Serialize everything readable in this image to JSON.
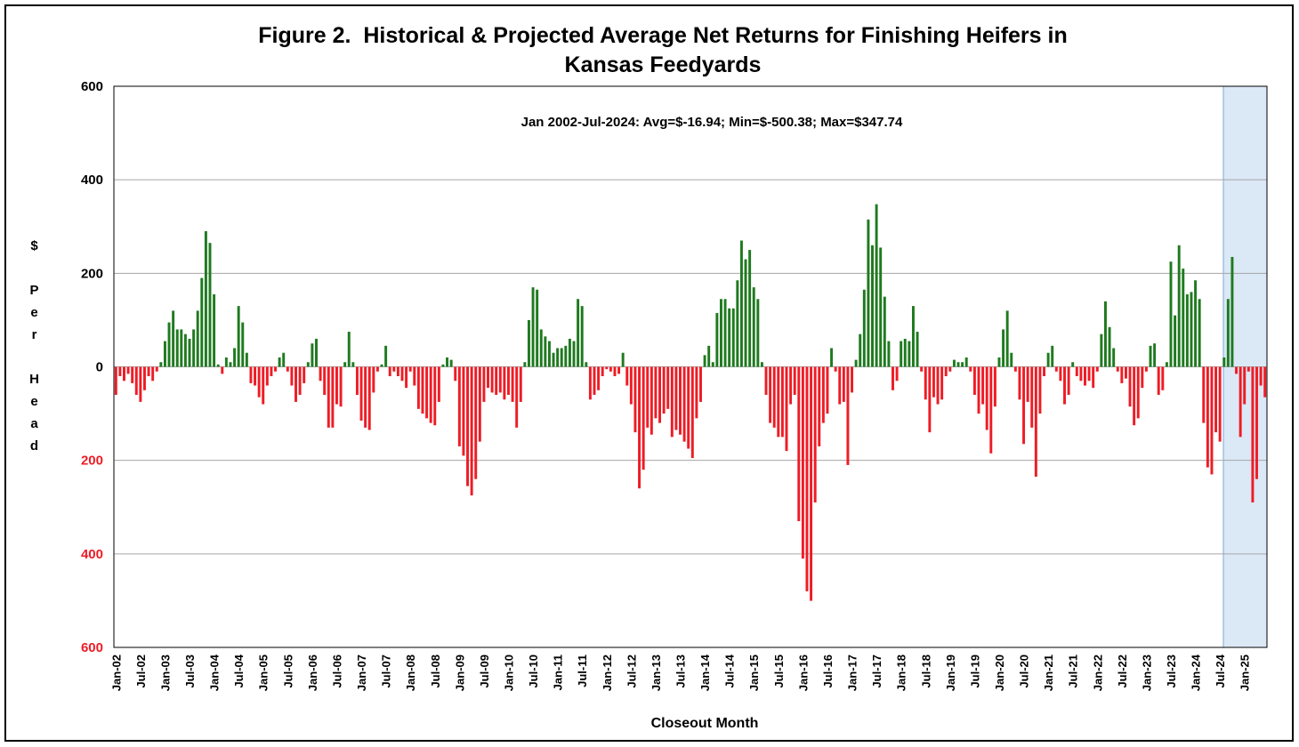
{
  "chart_data": {
    "type": "bar",
    "title": "Figure 2.  Historical & Projected Average Net Returns for Finishing Heifers in Kansas Feedyards",
    "annotation": "Jan 2002-Jul-2024:  Avg=$-16.94; Min=$-500.38; Max=$347.74",
    "y_label": "$ Per Head",
    "x_label": "Closeout Month",
    "ylim": [
      -600,
      600
    ],
    "yticks": [
      {
        "value": 600,
        "label": "600"
      },
      400,
      200,
      0,
      {
        "value": -200,
        "label": "200"
      },
      {
        "value": -400,
        "label": "400"
      },
      {
        "value": -600,
        "label": "600"
      }
    ],
    "grid": true,
    "positive_color": "#1f7a1f",
    "negative_color": "#ee1c25",
    "categories": [
      "Jan-02",
      null,
      null,
      null,
      null,
      null,
      "Jul-02",
      null,
      null,
      null,
      null,
      null,
      "Jan-03",
      null,
      null,
      null,
      null,
      null,
      "Jul-03",
      null,
      null,
      null,
      null,
      null,
      "Jan-04",
      null,
      null,
      null,
      null,
      null,
      "Jul-04",
      null,
      null,
      null,
      null,
      null,
      "Jan-05",
      null,
      null,
      null,
      null,
      null,
      "Jul-05",
      null,
      null,
      null,
      null,
      null,
      "Jan-06",
      null,
      null,
      null,
      null,
      null,
      "Jul-06",
      null,
      null,
      null,
      null,
      null,
      "Jan-07",
      null,
      null,
      null,
      null,
      null,
      "Jul-07",
      null,
      null,
      null,
      null,
      null,
      "Jan-08",
      null,
      null,
      null,
      null,
      null,
      "Jul-08",
      null,
      null,
      null,
      null,
      null,
      "Jan-09",
      null,
      null,
      null,
      null,
      null,
      "Jul-09",
      null,
      null,
      null,
      null,
      null,
      "Jan-10",
      null,
      null,
      null,
      null,
      null,
      "Jul-10",
      null,
      null,
      null,
      null,
      null,
      "Jan-11",
      null,
      null,
      null,
      null,
      null,
      "Jul-11",
      null,
      null,
      null,
      null,
      null,
      "Jan-12",
      null,
      null,
      null,
      null,
      null,
      "Jul-12",
      null,
      null,
      null,
      null,
      null,
      "Jan-13",
      null,
      null,
      null,
      null,
      null,
      "Jul-13",
      null,
      null,
      null,
      null,
      null,
      "Jan-14",
      null,
      null,
      null,
      null,
      null,
      "Jul-14",
      null,
      null,
      null,
      null,
      null,
      "Jan-15",
      null,
      null,
      null,
      null,
      null,
      "Jul-15",
      null,
      null,
      null,
      null,
      null,
      "Jan-16",
      null,
      null,
      null,
      null,
      null,
      "Jul-16",
      null,
      null,
      null,
      null,
      null,
      "Jan-17",
      null,
      null,
      null,
      null,
      null,
      "Jul-17",
      null,
      null,
      null,
      null,
      null,
      "Jan-18",
      null,
      null,
      null,
      null,
      null,
      "Jul-18",
      null,
      null,
      null,
      null,
      null,
      "Jan-19",
      null,
      null,
      null,
      null,
      null,
      "Jul-19",
      null,
      null,
      null,
      null,
      null,
      "Jan-20",
      null,
      null,
      null,
      null,
      null,
      "Jul-20",
      null,
      null,
      null,
      null,
      null,
      "Jan-21",
      null,
      null,
      null,
      null,
      null,
      "Jul-21",
      null,
      null,
      null,
      null,
      null,
      "Jan-22",
      null,
      null,
      null,
      null,
      null,
      "Jul-22",
      null,
      null,
      null,
      null,
      null,
      "Jan-23",
      null,
      null,
      null,
      null,
      null,
      "Jul-23",
      null,
      null,
      null,
      null,
      null,
      "Jan-24",
      null,
      null,
      null,
      null,
      null,
      "Jul-24",
      null,
      null,
      null,
      null,
      null,
      "Jan-25",
      null,
      null,
      null,
      null,
      null
    ],
    "values": [
      -60,
      -20,
      -30,
      -15,
      -35,
      -60,
      -75,
      -50,
      -20,
      -30,
      -10,
      10,
      55,
      95,
      120,
      80,
      80,
      70,
      60,
      80,
      120,
      190,
      290,
      265,
      155,
      5,
      -15,
      20,
      10,
      40,
      130,
      95,
      30,
      -35,
      -40,
      -65,
      -80,
      -40,
      -20,
      -10,
      20,
      30,
      -10,
      -40,
      -75,
      -60,
      -35,
      10,
      50,
      60,
      -30,
      -60,
      -130,
      -130,
      -80,
      -85,
      10,
      75,
      10,
      -60,
      -115,
      -130,
      -135,
      -55,
      -10,
      5,
      45,
      -20,
      -10,
      -20,
      -30,
      -45,
      -10,
      -40,
      -90,
      -100,
      -110,
      -120,
      -125,
      -75,
      5,
      20,
      15,
      -30,
      -170,
      -190,
      -255,
      -275,
      -240,
      -160,
      -75,
      -45,
      -55,
      -60,
      -55,
      -70,
      -60,
      -75,
      -130,
      -75,
      10,
      100,
      170,
      165,
      80,
      65,
      55,
      30,
      40,
      40,
      45,
      60,
      55,
      145,
      130,
      10,
      -70,
      -60,
      -50,
      -20,
      -5,
      -10,
      -20,
      -15,
      30,
      -40,
      -80,
      -140,
      -260,
      -220,
      -130,
      -145,
      -110,
      -120,
      -100,
      -90,
      -150,
      -135,
      -145,
      -160,
      -175,
      -195,
      -110,
      -75,
      25,
      45,
      10,
      115,
      145,
      145,
      125,
      125,
      185,
      270,
      230,
      250,
      170,
      145,
      10,
      -60,
      -120,
      -130,
      -150,
      -150,
      -180,
      -80,
      -60,
      -330,
      -410,
      -480,
      -500.38,
      -290,
      -170,
      -120,
      -100,
      40,
      -10,
      -80,
      -75,
      -210,
      -55,
      15,
      70,
      165,
      315,
      260,
      347.74,
      255,
      150,
      55,
      -50,
      -30,
      55,
      60,
      55,
      130,
      75,
      -10,
      -70,
      -140,
      -65,
      -80,
      -70,
      -20,
      -10,
      15,
      10,
      10,
      20,
      -10,
      -60,
      -100,
      -80,
      -135,
      -185,
      -85,
      20,
      80,
      120,
      30,
      -10,
      -70,
      -165,
      -75,
      -130,
      -235,
      -100,
      -20,
      30,
      45,
      -10,
      -30,
      -80,
      -60,
      10,
      -20,
      -30,
      -40,
      -30,
      -45,
      -10,
      70,
      140,
      85,
      40,
      -10,
      -35,
      -25,
      -85,
      -125,
      -110,
      -45,
      -10,
      45,
      50,
      -60,
      -50,
      10,
      225,
      110,
      260,
      210,
      155,
      160,
      185,
      145,
      -120,
      -215,
      -230,
      -140,
      -160,
      20,
      145,
      235,
      -15,
      -150,
      -80,
      -10,
      -290,
      -240,
      -40,
      -65
    ]
  }
}
